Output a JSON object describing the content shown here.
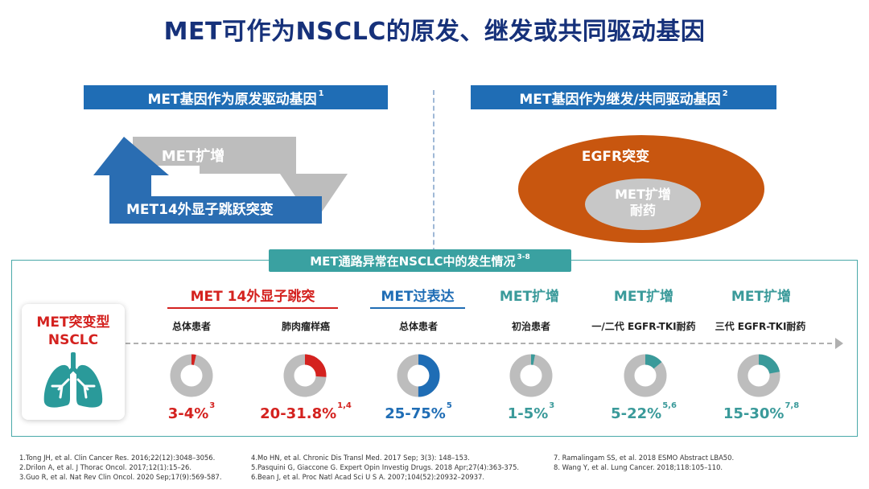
{
  "title": "MET可作为NSCLC的原发、继发或共同驱动基因",
  "left_header": {
    "text": "MET基因作为原发驱动基因",
    "sup": "1"
  },
  "right_header": {
    "text": "MET基因作为继发/共同驱动基因",
    "sup": "2"
  },
  "left_diagram": {
    "amp_label": "MET扩增",
    "skip_label": "MET14外显子跳跃突变"
  },
  "right_diagram": {
    "outer_label": "EGFR突变",
    "inner_line1": "MET扩增",
    "inner_line2": "耐药"
  },
  "pathway_header": {
    "text": "MET通路异常在NSCLC中的发生情况",
    "sup": "3-8"
  },
  "card": {
    "line1": "MET突变型",
    "line2": "NSCLC"
  },
  "colors": {
    "navy": "#16317a",
    "blue": "#1f6db5",
    "red": "#d4221f",
    "teal": "#3a9a9a",
    "gray": "#bdbdbd",
    "orange": "#c8560f"
  },
  "groups": [
    {
      "label": "MET 14外显子跳突",
      "color": "#d4221f"
    },
    {
      "label": "MET过表达",
      "color": "#1f6db5"
    },
    {
      "label": "MET扩增",
      "color": "#3a9a9a"
    },
    {
      "label": "MET扩增",
      "color": "#3a9a9a"
    },
    {
      "label": "MET扩增",
      "color": "#3a9a9a"
    }
  ],
  "items": [
    {
      "sub": "总体患者",
      "pct": "3-4%",
      "sup": "3",
      "fraction": 0.035,
      "color": "#d4221f"
    },
    {
      "sub": "肺肉瘤样癌",
      "pct": "20-31.8%",
      "sup": "1,4",
      "fraction": 0.26,
      "color": "#d4221f"
    },
    {
      "sub": "总体患者",
      "pct": "25-75%",
      "sup": "5",
      "fraction": 0.5,
      "color": "#1f6db5"
    },
    {
      "sub": "初治患者",
      "pct": "1-5%",
      "sup": "3",
      "fraction": 0.03,
      "color": "#3a9a9a"
    },
    {
      "sub": "一/二代 EGFR-TKI耐药",
      "pct": "5-22%",
      "sup": "5,6",
      "fraction": 0.14,
      "color": "#3a9a9a"
    },
    {
      "sub": "三代 EGFR-TKI耐药",
      "pct": "15-30%",
      "sup": "7,8",
      "fraction": 0.22,
      "color": "#3a9a9a"
    }
  ],
  "references": {
    "col1": [
      "1.Tong JH, et al. Clin Cancer Res. 2016;22(12):3048–3056.",
      "2.Drilon A, et al. J Thorac Oncol. 2017;12(1):15–26.",
      "3.Guo R, et al. Nat Rev Clin Oncol. 2020 Sep;17(9):569-587."
    ],
    "col2": [
      "4.Mo HN, et al. Chronic Dis Transl Med. 2017 Sep; 3(3): 148–153.",
      "5.Pasquini G, Giaccone G. Expert Opin Investig Drugs. 2018 Apr;27(4):363-375.",
      "6.Bean J, et al. Proc Natl Acad Sci U S A. 2007;104(52):20932–20937."
    ],
    "col3": [
      "7. Ramalingam SS, et al. 2018 ESMO Abstract LBA50.",
      "8. Wang Y, et al. Lung Cancer. 2018;118:105–110."
    ]
  }
}
